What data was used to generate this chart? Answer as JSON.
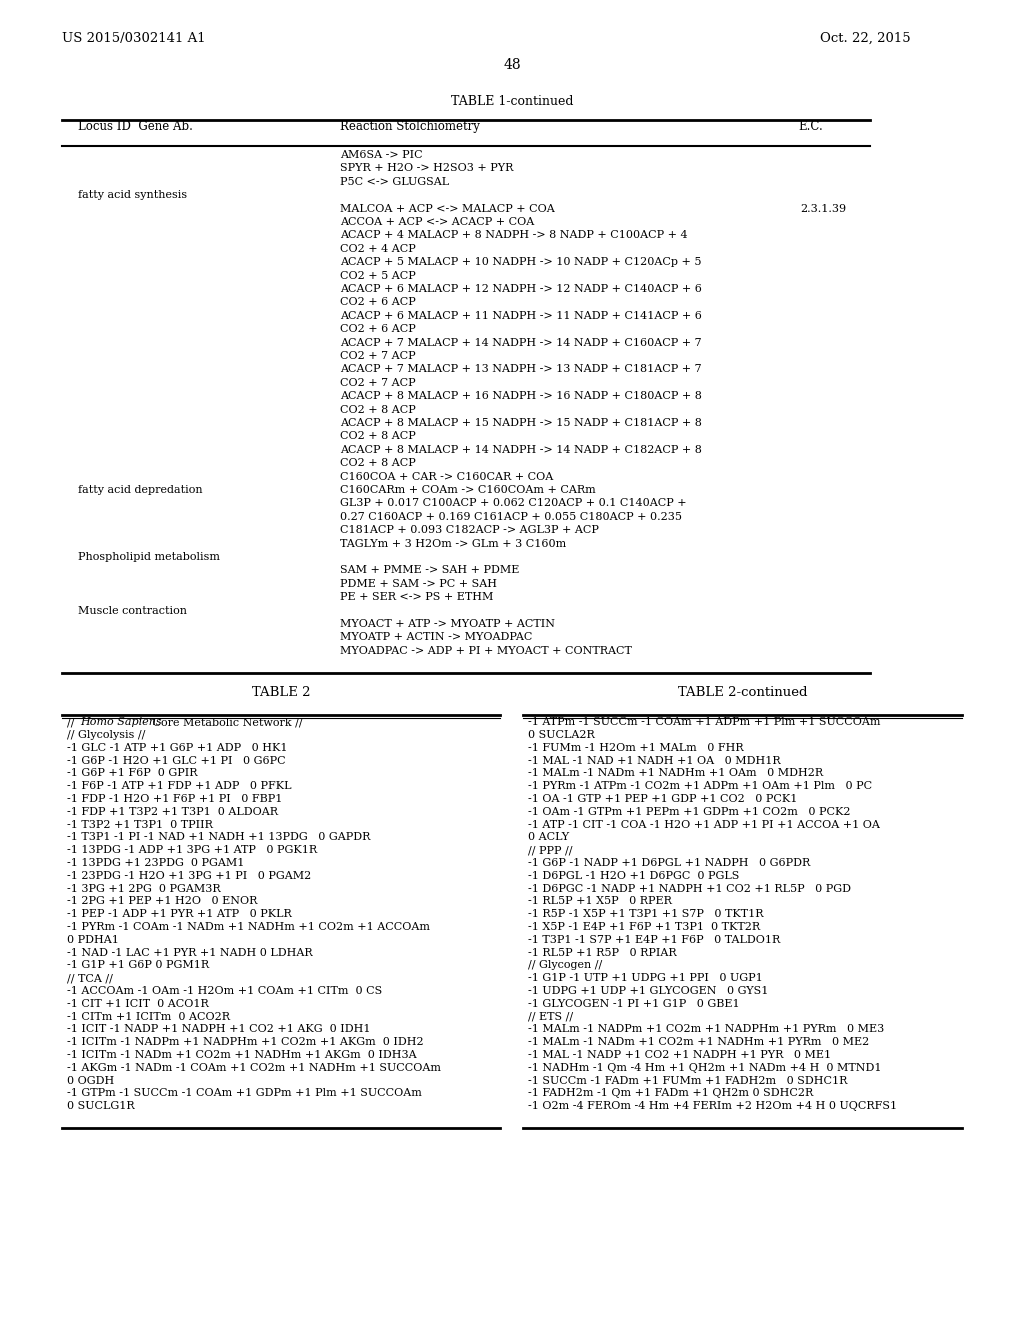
{
  "background_color": "#ffffff",
  "page_header_left": "US 2015/0302141 A1",
  "page_header_right": "Oct. 22, 2015",
  "page_number": "48",
  "table1_title": "TABLE 1-continued",
  "table1_headers": [
    "Locus ID  Gene Ab.",
    "Reaction Stolchiometry",
    "E.C."
  ],
  "table2_title": "TABLE 2",
  "table2cont_title": "TABLE 2-continued",
  "table2_left": [
    "// Homo Sapiens Core Metabolic Network //",
    "// Glycolysis //",
    "-1 GLC -1 ATP +1 G6P +1 ADP   0 HK1",
    "-1 G6P -1 H2O +1 GLC +1 PI   0 G6PC",
    "-1 G6P +1 F6P  0 GPIR",
    "-1 F6P -1 ATP +1 FDP +1 ADP   0 PFKL",
    "-1 FDP -1 H2O +1 F6P +1 PI   0 FBP1",
    "-1 FDP +1 T3P2 +1 T3P1  0 ALDOAR",
    "-1 T3P2 +1 T3P1  0 TPIIR",
    "-1 T3P1 -1 PI -1 NAD +1 NADH +1 13PDG   0 GAPDR",
    "-1 13PDG -1 ADP +1 3PG +1 ATP   0 PGK1R",
    "-1 13PDG +1 23PDG  0 PGAM1",
    "-1 23PDG -1 H2O +1 3PG +1 PI   0 PGAM2",
    "-1 3PG +1 2PG  0 PGAM3R",
    "-1 2PG +1 PEP +1 H2O   0 ENOR",
    "-1 PEP -1 ADP +1 PYR +1 ATP   0 PKLR",
    "-1 PYRm -1 COAm -1 NADm +1 NADHm +1 CO2m +1 ACCOAm",
    "0 PDHA1",
    "-1 NAD -1 LAC +1 PYR +1 NADH 0 LDHAR",
    "-1 G1P +1 G6P 0 PGM1R",
    "// TCA //",
    "-1 ACCOAm -1 OAm -1 H2Om +1 COAm +1 CITm  0 CS",
    "-1 CIT +1 ICIT  0 ACO1R",
    "-1 CITm +1 ICITm  0 ACO2R",
    "-1 ICIT -1 NADP +1 NADPH +1 CO2 +1 AKG  0 IDH1",
    "-1 ICITm -1 NADPm +1 NADPHm +1 CO2m +1 AKGm  0 IDH2",
    "-1 ICITm -1 NADm +1 CO2m +1 NADHm +1 AKGm  0 IDH3A",
    "-1 AKGm -1 NADm -1 COAm +1 CO2m +1 NADHm +1 SUCCOAm",
    "0 OGDH",
    "-1 GTPm -1 SUCCm -1 COAm +1 GDPm +1 Plm +1 SUCCOAm",
    "0 SUCLG1R"
  ],
  "table2_right": [
    "-1 ATPm -1 SUCCm -1 COAm +1 ADPm +1 Plm +1 SUCCOAm",
    "0 SUCLA2R",
    "-1 FUMm -1 H2Om +1 MALm   0 FHR",
    "-1 MAL -1 NAD +1 NADH +1 OA   0 MDH1R",
    "-1 MALm -1 NADm +1 NADHm +1 OAm   0 MDH2R",
    "-1 PYRm -1 ATPm -1 CO2m +1 ADPm +1 OAm +1 Plm   0 PC",
    "-1 OA -1 GTP +1 PEP +1 GDP +1 CO2   0 PCK1",
    "-1 OAm -1 GTPm +1 PEPm +1 GDPm +1 CO2m   0 PCK2",
    "-1 ATP -1 CIT -1 COA -1 H2O +1 ADP +1 PI +1 ACCOA +1 OA",
    "0 ACLY",
    "// PPP //",
    "-1 G6P -1 NADP +1 D6PGL +1 NADPH   0 G6PDR",
    "-1 D6PGL -1 H2O +1 D6PGC  0 PGLS",
    "-1 D6PGC -1 NADP +1 NADPH +1 CO2 +1 RL5P   0 PGD",
    "-1 RL5P +1 X5P   0 RPER",
    "-1 R5P -1 X5P +1 T3P1 +1 S7P   0 TKT1R",
    "-1 X5P -1 E4P +1 F6P +1 T3P1  0 TKT2R",
    "-1 T3P1 -1 S7P +1 E4P +1 F6P   0 TALDO1R",
    "-1 RL5P +1 R5P   0 RPIAR",
    "// Glycogen //",
    "-1 G1P -1 UTP +1 UDPG +1 PPI   0 UGP1",
    "-1 UDPG +1 UDP +1 GLYCOGEN   0 GYS1",
    "-1 GLYCOGEN -1 PI +1 G1P   0 GBE1",
    "// ETS //",
    "-1 MALm -1 NADPm +1 CO2m +1 NADPHm +1 PYRm   0 ME3",
    "-1 MALm -1 NADm +1 CO2m +1 NADHm +1 PYRm   0 ME2",
    "-1 MAL -1 NADP +1 CO2 +1 NADPH +1 PYR   0 ME1",
    "-1 NADHm -1 Qm -4 Hm +1 QH2m +1 NADm +4 H  0 MTND1",
    "-1 SUCCm -1 FADm +1 FUMm +1 FADH2m   0 SDHC1R",
    "-1 FADH2m -1 Qm +1 FADm +1 QH2m 0 SDHC2R",
    "-1 O2m -4 FEROm -4 Hm +4 FERIm +2 H2Om +4 H 0 UQCRFS1"
  ]
}
